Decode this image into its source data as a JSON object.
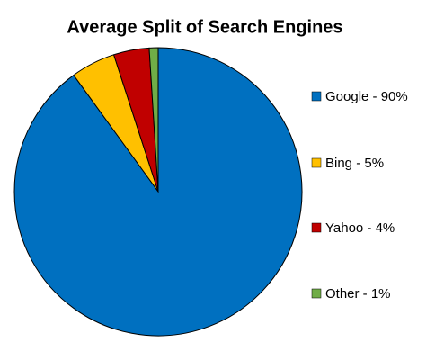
{
  "chart_data": {
    "type": "pie",
    "title": "Average Split of Search Engines",
    "categories": [
      "Google - 90%",
      "Bing - 5%",
      "Yahoo - 4%",
      "Other - 1%"
    ],
    "values": [
      90,
      5,
      4,
      1
    ],
    "colors": [
      "#0070c0",
      "#ffc000",
      "#c00000",
      "#70ad47"
    ],
    "legend": "right"
  }
}
